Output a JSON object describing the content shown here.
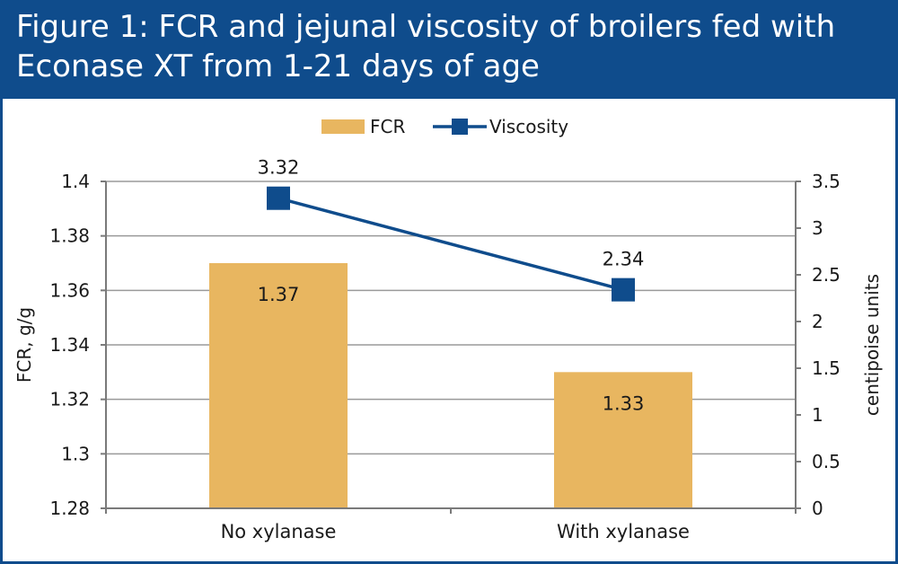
{
  "colors": {
    "header_bg": "#0f4c8c",
    "bar_fill": "#e8b660",
    "line_color": "#0f4c8c",
    "grid": "#9a9a9a"
  },
  "chart_data": {
    "type": "bar+line",
    "title": "Figure 1: FCR and jejunal viscosity of broilers fed with Econase XT from 1-21 days of age",
    "categories": [
      "No xylanase",
      "With xylanase"
    ],
    "series": [
      {
        "name": "FCR",
        "type": "bar",
        "axis": "left",
        "values": [
          1.37,
          1.33
        ],
        "labels": [
          "1.37",
          "1.33"
        ]
      },
      {
        "name": "Viscosity",
        "type": "line",
        "axis": "right",
        "values": [
          3.32,
          2.34
        ],
        "labels": [
          "3.32",
          "2.34"
        ]
      }
    ],
    "ylabel": "FCR, g/g",
    "ylim": [
      1.28,
      1.4
    ],
    "yticks": [
      "1.28",
      "1.3",
      "1.32",
      "1.34",
      "1.36",
      "1.38",
      "1.4"
    ],
    "y2label": "centipoise units",
    "y2lim": [
      0,
      3.5
    ],
    "y2ticks": [
      "0",
      "0.5",
      "1",
      "1.5",
      "2",
      "2.5",
      "3",
      "3.5"
    ],
    "legend": [
      "FCR",
      "Viscosity"
    ],
    "legend_position": "top-center",
    "grid": true
  }
}
